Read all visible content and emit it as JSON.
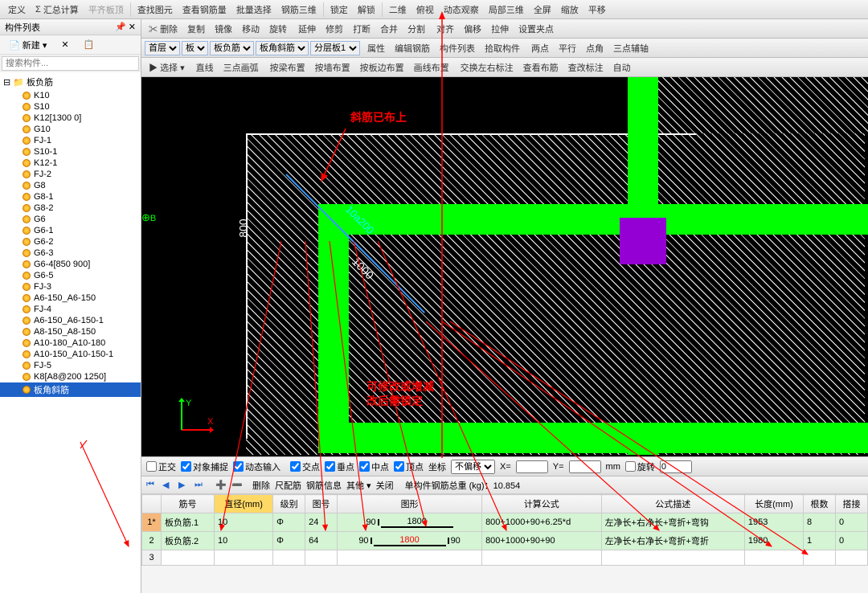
{
  "topToolbar": {
    "items": [
      "定义",
      "汇总计算",
      "平齐板顶",
      "查找图元",
      "查看钢筋量",
      "批量选择",
      "钢筋三维",
      "锁定",
      "解锁",
      "二维",
      "俯视",
      "动态观察",
      "局部三维",
      "全屏",
      "缩放",
      "平移"
    ]
  },
  "leftPanel": {
    "title": "构件列表",
    "newBtn": "新建",
    "searchPlaceholder": "搜索构件...",
    "rootLabel": "板负筋",
    "items": [
      "K10",
      "S10",
      "K12[1300 0]",
      "G10",
      "FJ-1",
      "S10-1",
      "K12-1",
      "FJ-2",
      "G8",
      "G8-1",
      "G8-2",
      "G6",
      "G6-1",
      "G6-2",
      "G6-3",
      "G6-4[850 900]",
      "G6-5",
      "FJ-3",
      "A6-150_A6-150",
      "FJ-4",
      "A6-150_A6-150-1",
      "A8-150_A8-150",
      "A10-180_A10-180",
      "A10-150_A10-150-1",
      "FJ-5",
      "K8[A8@200 1250]",
      "板角斜筋"
    ],
    "selectedIndex": 26
  },
  "editToolbar": {
    "items": [
      "删除",
      "复制",
      "镜像",
      "移动",
      "旋转",
      "延伸",
      "修剪",
      "打断",
      "合并",
      "分割",
      "对齐",
      "偏移",
      "拉伸",
      "设置夹点"
    ]
  },
  "layerToolbar": {
    "floor": "首层",
    "cat1": "板",
    "cat2": "板负筋",
    "cat3": "板角斜筋",
    "cat4": "分层板1",
    "items": [
      "属性",
      "编辑钢筋",
      "构件列表",
      "拾取构件",
      "两点",
      "平行",
      "点角",
      "三点辅轴"
    ]
  },
  "drawToolbar": {
    "select": "选择",
    "line": "直线",
    "arc": "三点画弧",
    "items": [
      "按梁布置",
      "按墙布置",
      "按板边布置",
      "画线布置",
      "交换左右标注",
      "查看布筋",
      "查改标注",
      "自动"
    ]
  },
  "canvas": {
    "annot1": "斜筋已布上",
    "annot2": "可修改或增减",
    "annot3": "改后需锁定",
    "axisLabel": "B",
    "dim1": "800",
    "dim2": "1000",
    "rebar": "10a200"
  },
  "statusBar": {
    "items": [
      "正交",
      "对象捕捉",
      "动态输入",
      "交点",
      "垂点",
      "中点",
      "顶点",
      "坐标"
    ],
    "offset": "不偏移",
    "xLabel": "X=",
    "yLabel": "Y=",
    "mm": "mm",
    "rotate": "旋转",
    "deg": "0"
  },
  "bottomPanel": {
    "navInfo": "单构件钢筋总重 (kg)：10.854",
    "toolItems": [
      "删除",
      "尺配筋",
      "钢筋信息",
      "其他",
      "关闭"
    ],
    "columns": [
      "",
      "筋号",
      "直径(mm)",
      "级别",
      "图号",
      "图形",
      "计算公式",
      "公式描述",
      "长度(mm)",
      "根数",
      "搭接"
    ],
    "hlCol": 2,
    "rows": [
      {
        "num": "1*",
        "name": "板负筋.1",
        "dia": "10",
        "grade": "Φ",
        "code": "24",
        "shapeL": "90",
        "shapeMid": "1800",
        "shapeR": "",
        "formula": "800+1000+90+6.25*d",
        "desc": "左净长+右净长+弯折+弯钩",
        "len": "1953",
        "count": "8",
        "lap": "0",
        "midRed": false
      },
      {
        "num": "2",
        "name": "板负筋.2",
        "dia": "10",
        "grade": "Φ",
        "code": "64",
        "shapeL": "90",
        "shapeMid": "1800",
        "shapeR": "90",
        "formula": "800+1000+90+90",
        "desc": "左净长+右净长+弯折+弯折",
        "len": "1980",
        "count": "1",
        "lap": "0",
        "midRed": true
      },
      {
        "num": "3",
        "name": "",
        "dia": "",
        "grade": "",
        "code": "",
        "shapeL": "",
        "shapeMid": "",
        "shapeR": "",
        "formula": "",
        "desc": "",
        "len": "",
        "count": "",
        "lap": "",
        "midRed": false
      }
    ]
  }
}
